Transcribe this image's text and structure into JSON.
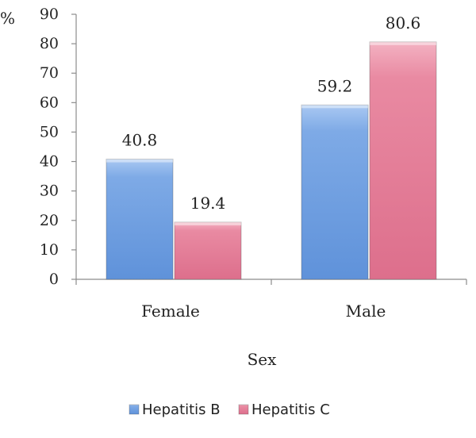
{
  "chart_data": {
    "type": "bar",
    "ylabel": "%",
    "xlabel": "Sex",
    "categories": [
      "Female",
      "Male"
    ],
    "series": [
      {
        "name": "Hepatitis B",
        "values": [
          40.8,
          59.2
        ],
        "color": "#6f9fe0"
      },
      {
        "name": "Hepatitis C",
        "values": [
          19.4,
          80.6
        ],
        "color": "#e57f98"
      }
    ],
    "ylim": [
      0,
      90
    ],
    "yticks": [
      0,
      10,
      20,
      30,
      40,
      50,
      60,
      70,
      80,
      90
    ],
    "grid": false,
    "legend_position": "bottom"
  }
}
